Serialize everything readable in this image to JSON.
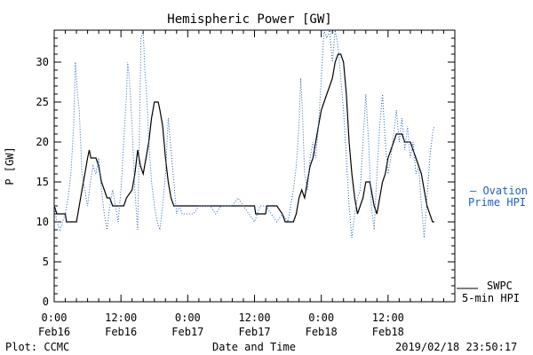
{
  "chart_data": {
    "type": "line",
    "title": "Hemispheric Power [GW]",
    "xlabel": "Date and Time",
    "ylabel": "P [GW]",
    "ylim": [
      0,
      34
    ],
    "xlim": [
      0,
      72
    ],
    "y_ticks": [
      0,
      5,
      10,
      15,
      20,
      25,
      30
    ],
    "x_ticks": [
      {
        "x": 0,
        "line1": "0:00",
        "line2": "Feb16"
      },
      {
        "x": 12,
        "line1": "12:00",
        "line2": "Feb16"
      },
      {
        "x": 24,
        "line1": "0:00",
        "line2": "Feb17"
      },
      {
        "x": 36,
        "line1": "12:00",
        "line2": "Feb17"
      },
      {
        "x": 48,
        "line1": "0:00",
        "line2": "Feb18"
      },
      {
        "x": 60,
        "line1": "12:00",
        "line2": "Feb18"
      }
    ],
    "grid": false,
    "series": [
      {
        "name": "SWPC 5-min HPI",
        "style": "solid",
        "color": "#000000",
        "legend_line1": "SWPC",
        "legend_line2": "5-min HPI",
        "points": [
          [
            0,
            12
          ],
          [
            0.5,
            11
          ],
          [
            2,
            11
          ],
          [
            2.2,
            10
          ],
          [
            4,
            10
          ],
          [
            4.5,
            12
          ],
          [
            5,
            14
          ],
          [
            5.5,
            16
          ],
          [
            6,
            18
          ],
          [
            6.3,
            19
          ],
          [
            6.6,
            18
          ],
          [
            7.5,
            18
          ],
          [
            8,
            17
          ],
          [
            8.5,
            15
          ],
          [
            9,
            14
          ],
          [
            9.5,
            13
          ],
          [
            10,
            13
          ],
          [
            10.5,
            12
          ],
          [
            12.5,
            12
          ],
          [
            13,
            13
          ],
          [
            14,
            14
          ],
          [
            14.5,
            16
          ],
          [
            15,
            19
          ],
          [
            15.5,
            17
          ],
          [
            16,
            16
          ],
          [
            16.5,
            18
          ],
          [
            17,
            20
          ],
          [
            17.5,
            23
          ],
          [
            18,
            25
          ],
          [
            18.7,
            25
          ],
          [
            19,
            24
          ],
          [
            19.5,
            22
          ],
          [
            20,
            18
          ],
          [
            20.5,
            15
          ],
          [
            21,
            13
          ],
          [
            21.5,
            12
          ],
          [
            24,
            12
          ],
          [
            27,
            12
          ],
          [
            30,
            12
          ],
          [
            33,
            12
          ],
          [
            36,
            12
          ],
          [
            36.2,
            11
          ],
          [
            38,
            11
          ],
          [
            38.2,
            12
          ],
          [
            40,
            12
          ],
          [
            41,
            11
          ],
          [
            41.5,
            10
          ],
          [
            43,
            10
          ],
          [
            43.5,
            11
          ],
          [
            44,
            13
          ],
          [
            44.5,
            14
          ],
          [
            45,
            13
          ],
          [
            45.5,
            15
          ],
          [
            46,
            17
          ],
          [
            46.5,
            18
          ],
          [
            47,
            20
          ],
          [
            47.5,
            22
          ],
          [
            48,
            24
          ],
          [
            48.5,
            25
          ],
          [
            49,
            26
          ],
          [
            49.5,
            27
          ],
          [
            50,
            28
          ],
          [
            50.5,
            30
          ],
          [
            51,
            31
          ],
          [
            51.5,
            31
          ],
          [
            52,
            30
          ],
          [
            52.5,
            26
          ],
          [
            53,
            20
          ],
          [
            53.5,
            16
          ],
          [
            54,
            13
          ],
          [
            54.5,
            11
          ],
          [
            55,
            12
          ],
          [
            55.5,
            13
          ],
          [
            56,
            15
          ],
          [
            56.7,
            15
          ],
          [
            57,
            14
          ],
          [
            57.5,
            12
          ],
          [
            58,
            11
          ],
          [
            58.5,
            13
          ],
          [
            59,
            15
          ],
          [
            59.5,
            16
          ],
          [
            60,
            18
          ],
          [
            60.5,
            19
          ],
          [
            61,
            20
          ],
          [
            61.5,
            21
          ],
          [
            62.5,
            21
          ],
          [
            63,
            20
          ],
          [
            63.5,
            20
          ],
          [
            64,
            20
          ],
          [
            64.5,
            19
          ],
          [
            65,
            18
          ],
          [
            65.5,
            17
          ],
          [
            66,
            16
          ],
          [
            66.5,
            14
          ],
          [
            67,
            12
          ],
          [
            67.5,
            11
          ],
          [
            68,
            10
          ],
          [
            68.3,
            10
          ]
        ]
      },
      {
        "name": "Ovation Prime HPI",
        "style": "dotted",
        "color": "#1f5fbf",
        "legend_line1": "— Ovation",
        "legend_line2": "Prime HPI",
        "points": [
          [
            0,
            12
          ],
          [
            0.5,
            10
          ],
          [
            1,
            9
          ],
          [
            1.5,
            10
          ],
          [
            2,
            11
          ],
          [
            2.5,
            13
          ],
          [
            3,
            16
          ],
          [
            3.5,
            22
          ],
          [
            3.8,
            30
          ],
          [
            4.2,
            26
          ],
          [
            4.5,
            24
          ],
          [
            5,
            16
          ],
          [
            5.5,
            14
          ],
          [
            6,
            12
          ],
          [
            6.5,
            15
          ],
          [
            7,
            17
          ],
          [
            7.5,
            16
          ],
          [
            8,
            18
          ],
          [
            8.5,
            14
          ],
          [
            9,
            11
          ],
          [
            9.5,
            9
          ],
          [
            10,
            12
          ],
          [
            10.5,
            14
          ],
          [
            11,
            12
          ],
          [
            11.5,
            10
          ],
          [
            12,
            14
          ],
          [
            12.5,
            20
          ],
          [
            13,
            26
          ],
          [
            13.2,
            30
          ],
          [
            13.5,
            28
          ],
          [
            14,
            22
          ],
          [
            14.5,
            14
          ],
          [
            15,
            9
          ],
          [
            15.3,
            20
          ],
          [
            15.6,
            33
          ],
          [
            16,
            34
          ],
          [
            16.3,
            29
          ],
          [
            16.6,
            26
          ],
          [
            17,
            20
          ],
          [
            17.5,
            15
          ],
          [
            18,
            12
          ],
          [
            18.5,
            10
          ],
          [
            19,
            9
          ],
          [
            19.5,
            12
          ],
          [
            20,
            16
          ],
          [
            20.5,
            23
          ],
          [
            21,
            19
          ],
          [
            21.5,
            15
          ],
          [
            22,
            11
          ],
          [
            22.5,
            12
          ],
          [
            23,
            11
          ],
          [
            24,
            11
          ],
          [
            25,
            11
          ],
          [
            26,
            12
          ],
          [
            27,
            12
          ],
          [
            28,
            12
          ],
          [
            29,
            11
          ],
          [
            30,
            12
          ],
          [
            31,
            12
          ],
          [
            32,
            12
          ],
          [
            33,
            13
          ],
          [
            34,
            12
          ],
          [
            35,
            11
          ],
          [
            36,
            10
          ],
          [
            36.5,
            11
          ],
          [
            37,
            12
          ],
          [
            38,
            12
          ],
          [
            39,
            11
          ],
          [
            40,
            10
          ],
          [
            41,
            11
          ],
          [
            42,
            10
          ],
          [
            42.5,
            12
          ],
          [
            43,
            14
          ],
          [
            43.5,
            17
          ],
          [
            44,
            22
          ],
          [
            44.3,
            28
          ],
          [
            44.6,
            24
          ],
          [
            45,
            16
          ],
          [
            45.5,
            14
          ],
          [
            46,
            18
          ],
          [
            46.5,
            20
          ],
          [
            47,
            18
          ],
          [
            47.5,
            22
          ],
          [
            48,
            28
          ],
          [
            48.5,
            34
          ],
          [
            49,
            33
          ],
          [
            49.5,
            34
          ],
          [
            50,
            30
          ],
          [
            50.5,
            34
          ],
          [
            51,
            32
          ],
          [
            51.5,
            28
          ],
          [
            52,
            24
          ],
          [
            52.5,
            18
          ],
          [
            53,
            12
          ],
          [
            53.5,
            8
          ],
          [
            54,
            11
          ],
          [
            54.5,
            13
          ],
          [
            55,
            14
          ],
          [
            55.5,
            20
          ],
          [
            56,
            26
          ],
          [
            56.5,
            20
          ],
          [
            57,
            12
          ],
          [
            57.5,
            9
          ],
          [
            58,
            16
          ],
          [
            58.5,
            22
          ],
          [
            59,
            26
          ],
          [
            59.5,
            20
          ],
          [
            60,
            16
          ],
          [
            60.5,
            18
          ],
          [
            61,
            21
          ],
          [
            61.5,
            24
          ],
          [
            62,
            20
          ],
          [
            62.5,
            23
          ],
          [
            63,
            19
          ],
          [
            63.5,
            22
          ],
          [
            64,
            18
          ],
          [
            64.5,
            20
          ],
          [
            65,
            16
          ],
          [
            65.5,
            17
          ],
          [
            66,
            12
          ],
          [
            66.5,
            8
          ],
          [
            67,
            13
          ],
          [
            67.5,
            18
          ],
          [
            68,
            21
          ],
          [
            68.3,
            22
          ]
        ]
      }
    ],
    "footer_left": "Plot: CCMC",
    "footer_right": "2019/02/18 23:50:17"
  }
}
